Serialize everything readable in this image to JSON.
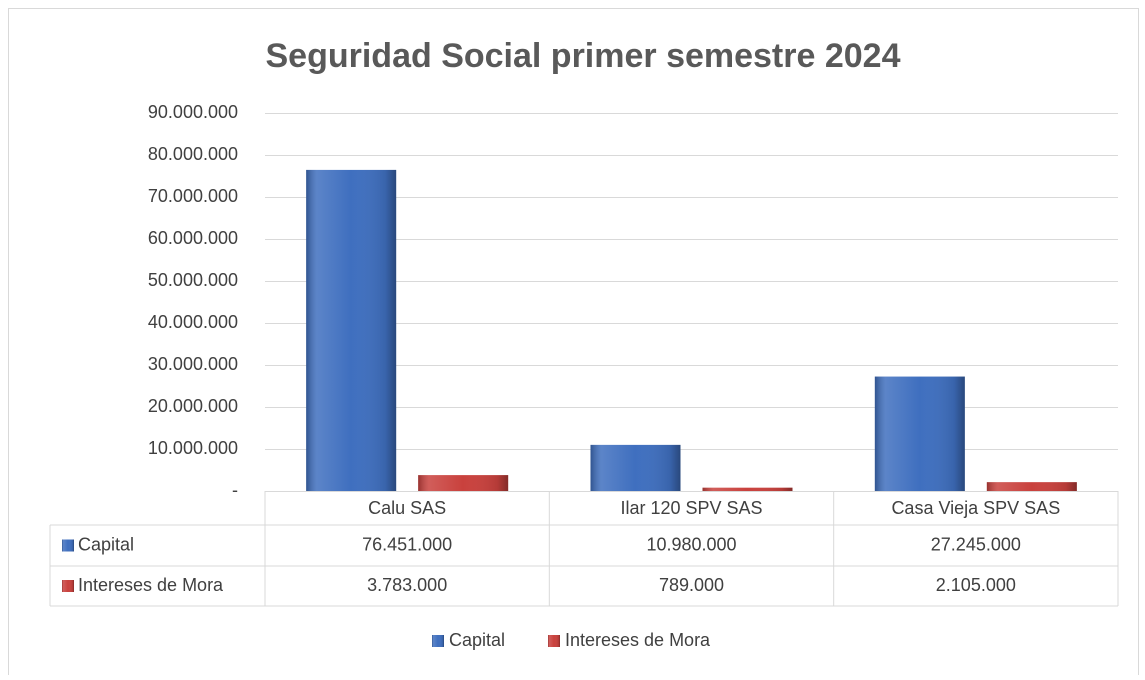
{
  "chart_data": {
    "type": "bar",
    "title": "Seguridad Social primer semestre 2024",
    "categories": [
      "Calu SAS",
      "Ilar 120 SPV SAS",
      "Casa Vieja SPV SAS"
    ],
    "series": [
      {
        "name": "Capital",
        "color": "#3f6fbf",
        "values": [
          76451000,
          10980000,
          27245000
        ],
        "value_labels": [
          "76.451.000",
          "10.980.000",
          "27.245.000"
        ]
      },
      {
        "name": "Intereses de Mora",
        "color": "#c9413d",
        "values": [
          3783000,
          789000,
          2105000
        ],
        "value_labels": [
          "3.783.000",
          "789.000",
          "2.105.000"
        ]
      }
    ],
    "ylim": [
      0,
      90000000
    ],
    "yticks": [
      {
        "value": 0,
        "label": "-"
      },
      {
        "value": 10000000,
        "label": "10.000.000"
      },
      {
        "value": 20000000,
        "label": "20.000.000"
      },
      {
        "value": 30000000,
        "label": "30.000.000"
      },
      {
        "value": 40000000,
        "label": "40.000.000"
      },
      {
        "value": 50000000,
        "label": "50.000.000"
      },
      {
        "value": 60000000,
        "label": "60.000.000"
      },
      {
        "value": 70000000,
        "label": "70.000.000"
      },
      {
        "value": 80000000,
        "label": "80.000.000"
      },
      {
        "value": 90000000,
        "label": "90.000.000"
      }
    ],
    "grid": true,
    "legend": "bottom"
  }
}
